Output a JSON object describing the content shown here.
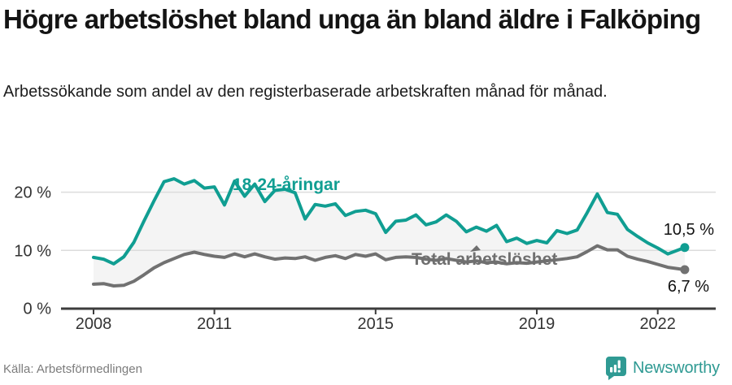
{
  "chart_data": {
    "type": "line",
    "title": "Högre arbetslöshet bland unga än bland äldre i Falköping",
    "subtitle": "Arbetssökande som andel av den registerbaserade arbetskraften månad för månad.",
    "source": "Källa: Arbetsförmedlingen",
    "grid": "horizontal",
    "area_fill_between_series": true,
    "xlim": [
      2007.2,
      2023.4
    ],
    "ylim": [
      0,
      24
    ],
    "x_ticks": [
      2008,
      2011,
      2015,
      2019,
      2022
    ],
    "x_tick_labels": [
      "2008",
      "2011",
      "2015",
      "2019",
      "2022"
    ],
    "y_ticks": [
      20,
      10,
      0
    ],
    "y_tick_labels": [
      "20 %",
      "10 %",
      "0 %"
    ],
    "x": [
      2008.0,
      2008.25,
      2008.5,
      2008.75,
      2009.0,
      2009.25,
      2009.5,
      2009.75,
      2010.0,
      2010.25,
      2010.5,
      2010.75,
      2011.0,
      2011.25,
      2011.5,
      2011.75,
      2012.0,
      2012.25,
      2012.5,
      2012.75,
      2013.0,
      2013.25,
      2013.5,
      2013.75,
      2014.0,
      2014.25,
      2014.5,
      2014.75,
      2015.0,
      2015.25,
      2015.5,
      2015.75,
      2016.0,
      2016.25,
      2016.5,
      2016.75,
      2017.0,
      2017.25,
      2017.5,
      2017.75,
      2018.0,
      2018.25,
      2018.5,
      2018.75,
      2019.0,
      2019.25,
      2019.5,
      2019.75,
      2020.0,
      2020.25,
      2020.5,
      2020.75,
      2021.0,
      2021.25,
      2021.5,
      2021.75,
      2022.0,
      2022.25,
      2022.67
    ],
    "series": [
      {
        "name": "18-24-åringar",
        "color": "#109e92",
        "end_label": "10,5 %",
        "end_value": 10.5,
        "values": [
          8.8,
          8.5,
          7.7,
          8.9,
          11.4,
          15.0,
          18.5,
          21.8,
          22.3,
          21.4,
          22.0,
          20.7,
          20.9,
          17.8,
          21.9,
          19.3,
          21.4,
          18.4,
          20.3,
          20.5,
          19.9,
          15.4,
          17.9,
          17.6,
          18.0,
          16.0,
          16.7,
          16.9,
          16.3,
          13.1,
          15.0,
          15.2,
          16.1,
          14.4,
          14.9,
          16.1,
          15.0,
          13.2,
          14.0,
          13.3,
          14.3,
          11.5,
          12.1,
          11.2,
          11.7,
          11.3,
          13.4,
          12.9,
          13.5,
          16.5,
          19.7,
          16.5,
          16.2,
          13.6,
          12.4,
          11.3,
          10.4,
          9.4,
          10.5
        ]
      },
      {
        "name": "Total arbetslöshet",
        "color": "#717171",
        "end_label": "6,7 %",
        "end_value": 6.7,
        "values": [
          4.2,
          4.3,
          3.9,
          4.0,
          4.7,
          5.8,
          7.0,
          7.9,
          8.6,
          9.3,
          9.7,
          9.3,
          9.0,
          8.8,
          9.4,
          8.9,
          9.4,
          8.9,
          8.5,
          8.7,
          8.6,
          8.9,
          8.3,
          8.8,
          9.1,
          8.6,
          9.3,
          9.0,
          9.4,
          8.4,
          8.8,
          8.9,
          8.8,
          8.5,
          8.3,
          8.6,
          8.3,
          8.0,
          8.2,
          7.9,
          8.0,
          7.7,
          7.9,
          7.8,
          8.0,
          8.2,
          8.4,
          8.6,
          8.9,
          9.8,
          10.8,
          10.1,
          10.1,
          9.0,
          8.5,
          8.1,
          7.6,
          7.1,
          6.7
        ]
      }
    ]
  },
  "footer": {
    "brand": "Newsworthy"
  }
}
